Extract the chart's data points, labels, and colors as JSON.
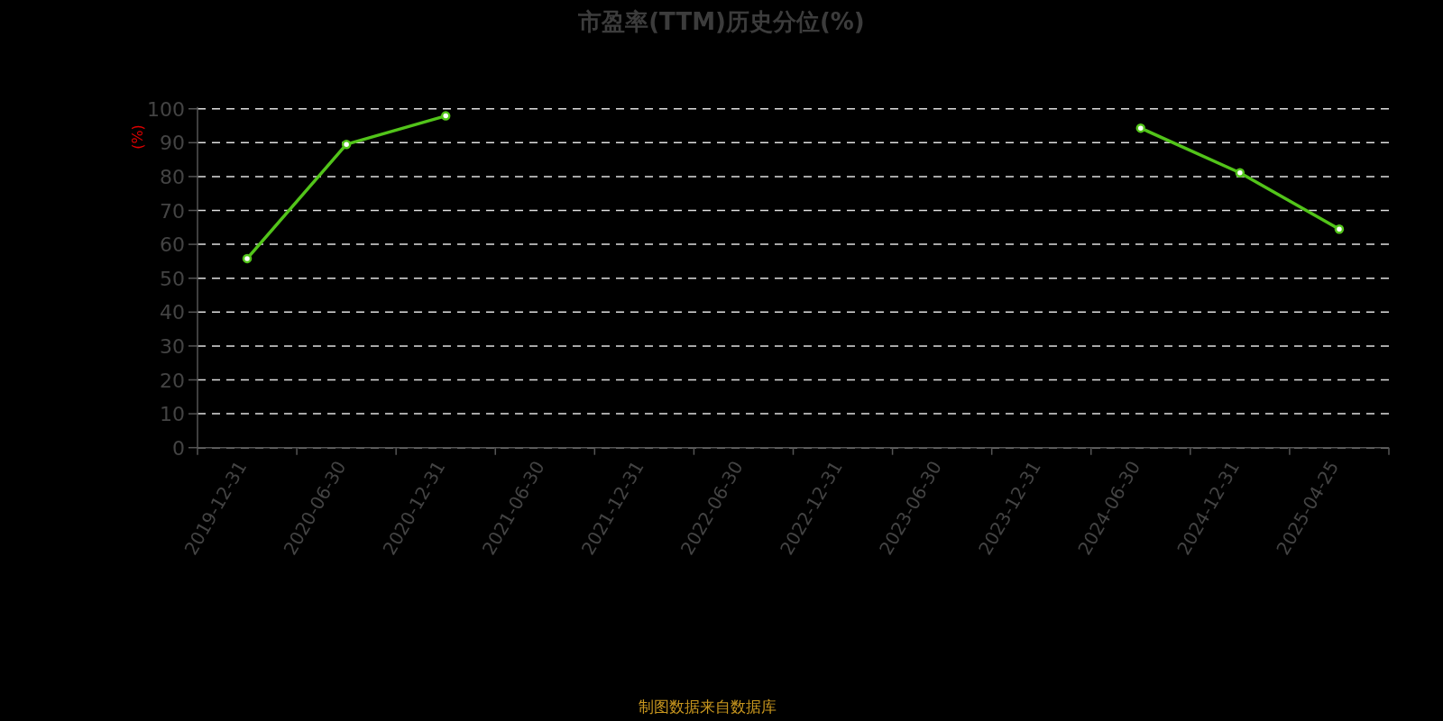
{
  "chart_data": {
    "type": "line",
    "title": "市盈率(TTM)历史分位(%)",
    "ylabel": "(%)",
    "categories": [
      "2019-12-31",
      "2020-06-30",
      "2020-12-31",
      "2021-06-30",
      "2021-12-31",
      "2022-06-30",
      "2022-12-31",
      "2023-06-30",
      "2023-12-31",
      "2024-06-30",
      "2024-12-31",
      "2025-04-25"
    ],
    "series": [
      {
        "color": "#52c41a",
        "values": [
          55.8,
          89.5,
          97.9,
          null,
          null,
          null,
          null,
          null,
          null,
          94.3,
          81.1,
          64.5
        ]
      }
    ],
    "ylim": [
      0,
      100
    ],
    "yticks": [
      0,
      10,
      20,
      30,
      40,
      50,
      60,
      70,
      80,
      90,
      100
    ],
    "grid": "y",
    "marker": "circle",
    "line_style": "solid",
    "annotations": [
      "制图数据来自数据库"
    ]
  }
}
